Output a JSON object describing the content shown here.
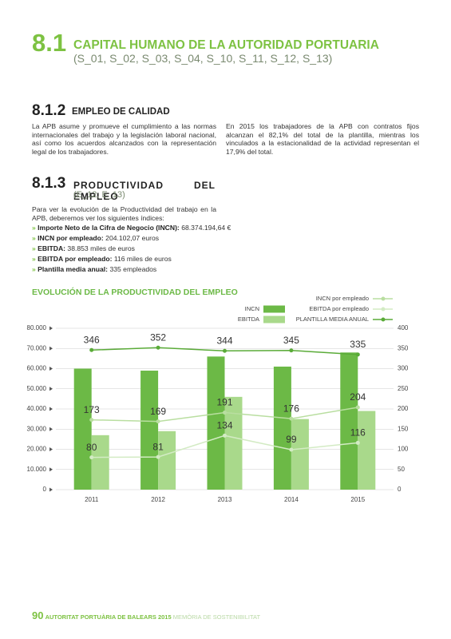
{
  "header": {
    "number": "8.1",
    "title": "CAPITAL HUMANO DE LA AUTORIDAD PORTUARIA",
    "codes": "(S_01, S_02, S_03, S_04, S_10, S_11, S_12, S_13)"
  },
  "section_1": {
    "number": "8.1.2",
    "title": "EMPLEO DE CALIDAD",
    "paragraphs": [
      "La APB asume y promueve el cumplimiento a las normas internacionales del trabajo y la legislación laboral nacional, así como los acuerdos alcanzados con la representación legal de los trabajadores.",
      "En 2015 los trabajadores de la APB con contratos fijos alcanzan el 82,1% del total de la plantilla, mientras los vinculados a la estacionalidad de la actividad representan el 17,9% del total."
    ]
  },
  "section_2": {
    "number": "8.1.3",
    "title": "PRODUCTIVIDAD DEL EMPLEO",
    "codes": "(E_12, E_13)",
    "intro": "Para ver la evolución de la Productividad del trabajo en la APB, deberemos ver los siguientes índices:",
    "items": [
      {
        "label": "Importe Neto de la Cifra de Negocio (INCN):",
        "value": "68.374.194,64 €"
      },
      {
        "label": "INCN por empleado:",
        "value": "204.102,07  euros"
      },
      {
        "label": "EBITDA:",
        "value": "38.853 miles de euros"
      },
      {
        "label": "EBITDA por empleado:",
        "value": "116 miles de euros"
      },
      {
        "label": "Plantilla media anual:",
        "value": "335 empleados"
      }
    ]
  },
  "chart_data": {
    "type": "bar",
    "title": "EVOLUCIÓN DE LA PRODUCTIVIDAD DEL EMPLEO",
    "categories": [
      "2011",
      "2012",
      "2013",
      "2014",
      "2015"
    ],
    "series": [
      {
        "name": "INCN",
        "type": "bar",
        "color": "#6cb946",
        "values": [
          60000,
          59000,
          66000,
          61000,
          68000
        ]
      },
      {
        "name": "EBITDA",
        "type": "bar",
        "color": "#a9d98b",
        "values": [
          27000,
          29000,
          46000,
          35000,
          39000
        ]
      },
      {
        "name": "INCN por empleado",
        "type": "line",
        "axis": "y2",
        "color": "#b9dea0",
        "values": [
          173,
          169,
          191,
          176,
          204
        ]
      },
      {
        "name": "EBITDA por empleado",
        "type": "line",
        "axis": "y2",
        "color": "#d3ebc4",
        "values": [
          80,
          81,
          134,
          99,
          116
        ]
      },
      {
        "name": "PLANTILLA MEDIA ANUAL",
        "type": "line",
        "axis": "y2",
        "color": "#5aab38",
        "values": [
          346,
          352,
          344,
          345,
          335
        ]
      }
    ],
    "ylim": [
      0,
      80000
    ],
    "yticks": [
      0,
      {
        "value": 10000,
        "label": "10.000"
      },
      {
        "value": 20000,
        "label": "20.000"
      },
      {
        "value": 30000,
        "label": "30.000"
      },
      {
        "value": 40000,
        "label": "40.000"
      },
      {
        "value": 50000,
        "label": "50.000"
      },
      {
        "value": 60000,
        "label": "60.000"
      },
      {
        "value": 70000,
        "label": "70.000"
      },
      {
        "value": 80000,
        "label": "80.000"
      }
    ],
    "y2lim": [
      0,
      400
    ],
    "y2ticks": [
      0,
      50,
      100,
      150,
      200,
      250,
      300,
      350,
      400
    ],
    "grid": true
  },
  "footer": {
    "page": "90",
    "publisher": "AUTORITAT PORTUÀRIA DE BALEARS 2015",
    "document": "MEMÒRIA DE SOSTENIBILITAT"
  }
}
